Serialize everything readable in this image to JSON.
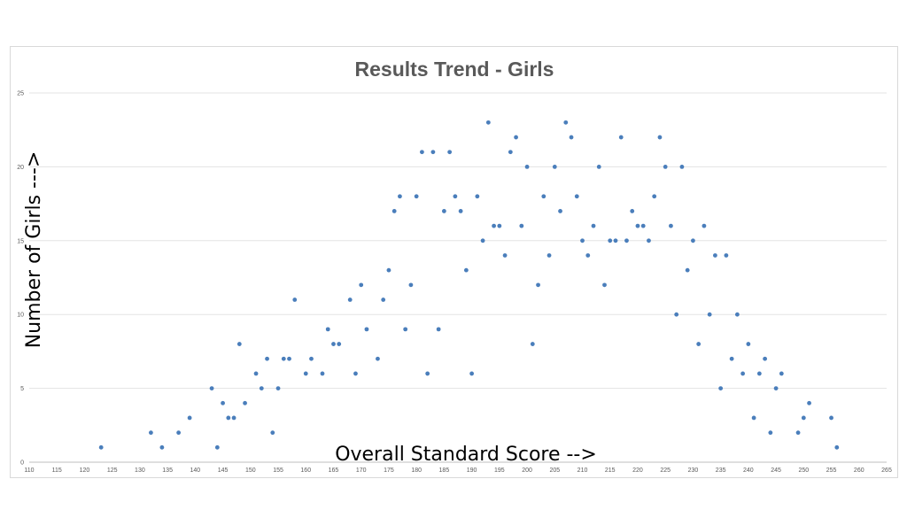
{
  "chart_data": {
    "type": "scatter",
    "title": "Results Trend -  Girls",
    "xlabel": "Overall Standard Score -->",
    "ylabel": "Number of Girls --->",
    "xlim": [
      110,
      265
    ],
    "ylim": [
      0,
      25
    ],
    "xticks": [
      110,
      115,
      120,
      125,
      130,
      135,
      140,
      145,
      150,
      155,
      160,
      165,
      170,
      175,
      180,
      185,
      190,
      195,
      200,
      205,
      210,
      215,
      220,
      225,
      230,
      235,
      240,
      245,
      250,
      255,
      260,
      265
    ],
    "yticks": [
      0,
      5,
      10,
      15,
      20,
      25
    ],
    "grid": "horizontal",
    "colors": {
      "points": "#4a7ebb"
    },
    "points": [
      [
        123,
        1
      ],
      [
        132,
        2
      ],
      [
        134,
        1
      ],
      [
        137,
        2
      ],
      [
        139,
        3
      ],
      [
        143,
        5
      ],
      [
        144,
        1
      ],
      [
        145,
        4
      ],
      [
        146,
        3
      ],
      [
        147,
        3
      ],
      [
        148,
        8
      ],
      [
        149,
        4
      ],
      [
        151,
        6
      ],
      [
        152,
        5
      ],
      [
        153,
        7
      ],
      [
        154,
        2
      ],
      [
        155,
        5
      ],
      [
        156,
        7
      ],
      [
        157,
        7
      ],
      [
        158,
        11
      ],
      [
        160,
        6
      ],
      [
        161,
        7
      ],
      [
        163,
        6
      ],
      [
        164,
        9
      ],
      [
        165,
        8
      ],
      [
        166,
        8
      ],
      [
        168,
        11
      ],
      [
        169,
        6
      ],
      [
        170,
        12
      ],
      [
        171,
        9
      ],
      [
        173,
        7
      ],
      [
        174,
        11
      ],
      [
        175,
        13
      ],
      [
        176,
        17
      ],
      [
        177,
        18
      ],
      [
        178,
        9
      ],
      [
        179,
        12
      ],
      [
        180,
        18
      ],
      [
        181,
        21
      ],
      [
        182,
        6
      ],
      [
        183,
        21
      ],
      [
        184,
        9
      ],
      [
        185,
        17
      ],
      [
        186,
        21
      ],
      [
        187,
        18
      ],
      [
        188,
        17
      ],
      [
        189,
        13
      ],
      [
        190,
        6
      ],
      [
        191,
        18
      ],
      [
        192,
        15
      ],
      [
        193,
        23
      ],
      [
        194,
        16
      ],
      [
        195,
        16
      ],
      [
        196,
        14
      ],
      [
        197,
        21
      ],
      [
        198,
        22
      ],
      [
        199,
        16
      ],
      [
        200,
        20
      ],
      [
        201,
        8
      ],
      [
        202,
        12
      ],
      [
        203,
        18
      ],
      [
        204,
        14
      ],
      [
        205,
        20
      ],
      [
        206,
        17
      ],
      [
        207,
        23
      ],
      [
        208,
        22
      ],
      [
        209,
        18
      ],
      [
        210,
        15
      ],
      [
        211,
        14
      ],
      [
        212,
        16
      ],
      [
        213,
        20
      ],
      [
        214,
        12
      ],
      [
        215,
        15
      ],
      [
        216,
        15
      ],
      [
        217,
        22
      ],
      [
        218,
        15
      ],
      [
        219,
        17
      ],
      [
        220,
        16
      ],
      [
        221,
        16
      ],
      [
        222,
        15
      ],
      [
        223,
        18
      ],
      [
        224,
        22
      ],
      [
        225,
        20
      ],
      [
        226,
        16
      ],
      [
        227,
        10
      ],
      [
        228,
        20
      ],
      [
        229,
        13
      ],
      [
        230,
        15
      ],
      [
        231,
        8
      ],
      [
        232,
        16
      ],
      [
        233,
        10
      ],
      [
        234,
        14
      ],
      [
        235,
        5
      ],
      [
        236,
        14
      ],
      [
        237,
        7
      ],
      [
        238,
        10
      ],
      [
        239,
        6
      ],
      [
        240,
        8
      ],
      [
        241,
        3
      ],
      [
        242,
        6
      ],
      [
        243,
        7
      ],
      [
        244,
        2
      ],
      [
        245,
        5
      ],
      [
        246,
        6
      ],
      [
        249,
        2
      ],
      [
        250,
        3
      ],
      [
        251,
        4
      ],
      [
        255,
        3
      ],
      [
        256,
        1
      ]
    ]
  }
}
